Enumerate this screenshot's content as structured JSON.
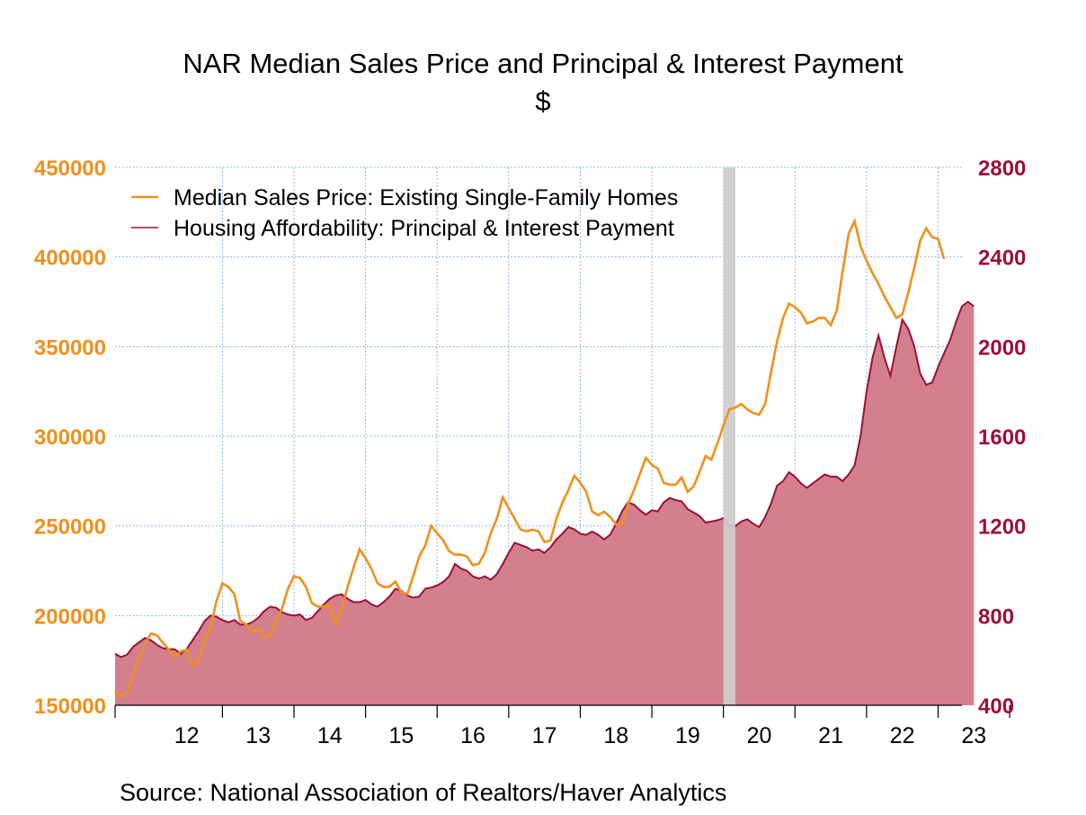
{
  "chart_data": {
    "type": "line",
    "title": "NAR Median Sales Price and Principal & Interest Payment",
    "subtitle": "$",
    "source": "Source:  National Association of Realtors/Haver Analytics",
    "x_tick_labels": [
      "12",
      "13",
      "14",
      "15",
      "16",
      "17",
      "18",
      "19",
      "20",
      "21",
      "22",
      "23"
    ],
    "x_range": [
      2011.5,
      2023.333
    ],
    "y_left": {
      "ticks": [
        150000,
        200000,
        250000,
        300000,
        350000,
        400000,
        450000
      ],
      "range": [
        150000,
        450000
      ],
      "color": "#f0901c"
    },
    "y_right": {
      "ticks": [
        400,
        800,
        1200,
        1600,
        2000,
        2400,
        2800
      ],
      "range": [
        400,
        2800
      ],
      "color": "#9c1038"
    },
    "grid": true,
    "legend_placement": "top-left",
    "recession_band": {
      "start": 2020.0,
      "end": 2020.167
    },
    "series": [
      {
        "name": "Median Sales Price: Existing Single-Family Homes",
        "axis": "left",
        "style": "line",
        "color": "#f0901c",
        "x_start": 2011.5,
        "x_step": 0.0833333,
        "values": [
          158000,
          155000,
          157000,
          166000,
          176000,
          184000,
          190000,
          189000,
          185000,
          181000,
          177000,
          180000,
          181000,
          172000,
          175000,
          186000,
          193000,
          208000,
          218000,
          216000,
          212000,
          197000,
          195000,
          191000,
          193000,
          188000,
          189000,
          197000,
          204000,
          215000,
          222000,
          221000,
          216000,
          207000,
          205000,
          205000,
          206000,
          195000,
          204000,
          216000,
          227000,
          237000,
          232000,
          226000,
          218000,
          216000,
          216000,
          219000,
          213000,
          212000,
          222000,
          233000,
          239000,
          250000,
          246000,
          242000,
          236000,
          234000,
          234000,
          233000,
          228000,
          229000,
          235000,
          246000,
          254000,
          266000,
          260000,
          254000,
          248000,
          247000,
          248000,
          247000,
          241000,
          242000,
          254000,
          263000,
          270000,
          278000,
          274000,
          269000,
          258000,
          256000,
          258000,
          255000,
          251000,
          251000,
          262000,
          270000,
          279000,
          288000,
          284000,
          282000,
          274000,
          273000,
          273000,
          277000,
          269000,
          272000,
          280000,
          289000,
          287000,
          296000,
          306000,
          315000,
          316000,
          318000,
          315000,
          313000,
          312000,
          318000,
          336000,
          353000,
          366000,
          374000,
          372000,
          369000,
          363000,
          364000,
          366000,
          366000,
          362000,
          370000,
          392000,
          413000,
          420000,
          406000,
          398000,
          391000,
          385000,
          378000,
          372000,
          366000,
          368000,
          380000,
          394000,
          409000,
          416000,
          411000,
          410000,
          399000
        ]
      },
      {
        "name": "Housing Affordability: Principal & Interest Payment",
        "axis": "right",
        "style": "area",
        "color": "#9c1038",
        "fill": "#d37f8e",
        "x_start": 2011.5,
        "x_step": 0.0833333,
        "values": [
          630,
          615,
          625,
          660,
          680,
          700,
          690,
          670,
          655,
          650,
          650,
          630,
          650,
          690,
          730,
          775,
          800,
          795,
          780,
          770,
          780,
          760,
          760,
          770,
          790,
          820,
          840,
          835,
          815,
          805,
          800,
          805,
          780,
          790,
          820,
          850,
          875,
          890,
          895,
          875,
          860,
          860,
          870,
          850,
          840,
          860,
          885,
          920,
          910,
          890,
          880,
          885,
          920,
          925,
          935,
          950,
          975,
          1030,
          1010,
          1000,
          975,
          965,
          975,
          960,
          985,
          1030,
          1080,
          1125,
          1115,
          1105,
          1090,
          1095,
          1080,
          1105,
          1140,
          1165,
          1195,
          1185,
          1165,
          1160,
          1175,
          1160,
          1140,
          1160,
          1210,
          1265,
          1305,
          1295,
          1270,
          1250,
          1270,
          1265,
          1305,
          1325,
          1315,
          1310,
          1275,
          1260,
          1245,
          1215,
          1220,
          1225,
          1235,
          1200,
          1200,
          1220,
          1230,
          1210,
          1195,
          1240,
          1300,
          1380,
          1400,
          1440,
          1420,
          1390,
          1370,
          1390,
          1410,
          1430,
          1420,
          1420,
          1400,
          1430,
          1470,
          1600,
          1800,
          1950,
          2050,
          1950,
          1870,
          2000,
          2120,
          2080,
          2000,
          1880,
          1830,
          1840,
          1910,
          1970,
          2030,
          2110,
          2180,
          2200,
          2180
        ]
      }
    ]
  }
}
